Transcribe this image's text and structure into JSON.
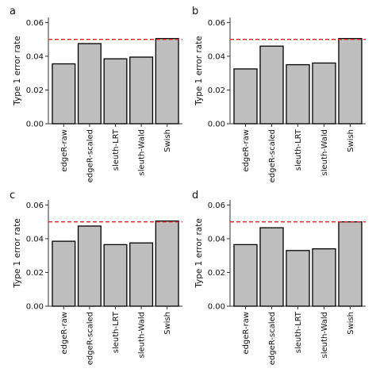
{
  "colors": {
    "bar_fill": "#bebebe",
    "bar_stroke": "#000000",
    "reference_line": "#d62728",
    "axis": "#333333"
  },
  "chart_data": [
    {
      "type": "bar",
      "panel": "a",
      "categories": [
        "edgeR-raw",
        "edgeR-scaled",
        "sleuth-LRT",
        "sleuth-Wald",
        "Swish"
      ],
      "values": [
        0.0355,
        0.0475,
        0.0385,
        0.0395,
        0.0505
      ],
      "ylabel": "Type 1 error rate",
      "yticks": [
        "0.00",
        "0.02",
        "0.04",
        "0.06"
      ],
      "ylim": [
        0,
        0.063
      ],
      "reference_line": 0.05,
      "grid": false
    },
    {
      "type": "bar",
      "panel": "b",
      "categories": [
        "edgeR-raw",
        "edgeR-scaled",
        "sleuth-LRT",
        "sleuth-Wald",
        "Swish"
      ],
      "values": [
        0.0325,
        0.046,
        0.035,
        0.036,
        0.0505
      ],
      "ylabel": "Type 1 error rate",
      "yticks": [
        "0.00",
        "0.02",
        "0.04",
        "0.06"
      ],
      "ylim": [
        0,
        0.063
      ],
      "reference_line": 0.05,
      "grid": false
    },
    {
      "type": "bar",
      "panel": "c",
      "categories": [
        "edgeR-raw",
        "edgeR-scaled",
        "sleuth-LRT",
        "sleuth-Wald",
        "Swish"
      ],
      "values": [
        0.0385,
        0.0475,
        0.0365,
        0.0375,
        0.0505
      ],
      "ylabel": "Type 1 error rate",
      "yticks": [
        "0.00",
        "0.02",
        "0.04",
        "0.06"
      ],
      "ylim": [
        0,
        0.063
      ],
      "reference_line": 0.05,
      "grid": false
    },
    {
      "type": "bar",
      "panel": "d",
      "categories": [
        "edgeR-raw",
        "edgeR-scaled",
        "sleuth-LRT",
        "sleuth-Wald",
        "Swish"
      ],
      "values": [
        0.0365,
        0.0465,
        0.033,
        0.034,
        0.05
      ],
      "ylabel": "Type 1 error rate",
      "yticks": [
        "0.00",
        "0.02",
        "0.04",
        "0.06"
      ],
      "ylim": [
        0,
        0.063
      ],
      "reference_line": 0.05,
      "grid": false
    }
  ]
}
